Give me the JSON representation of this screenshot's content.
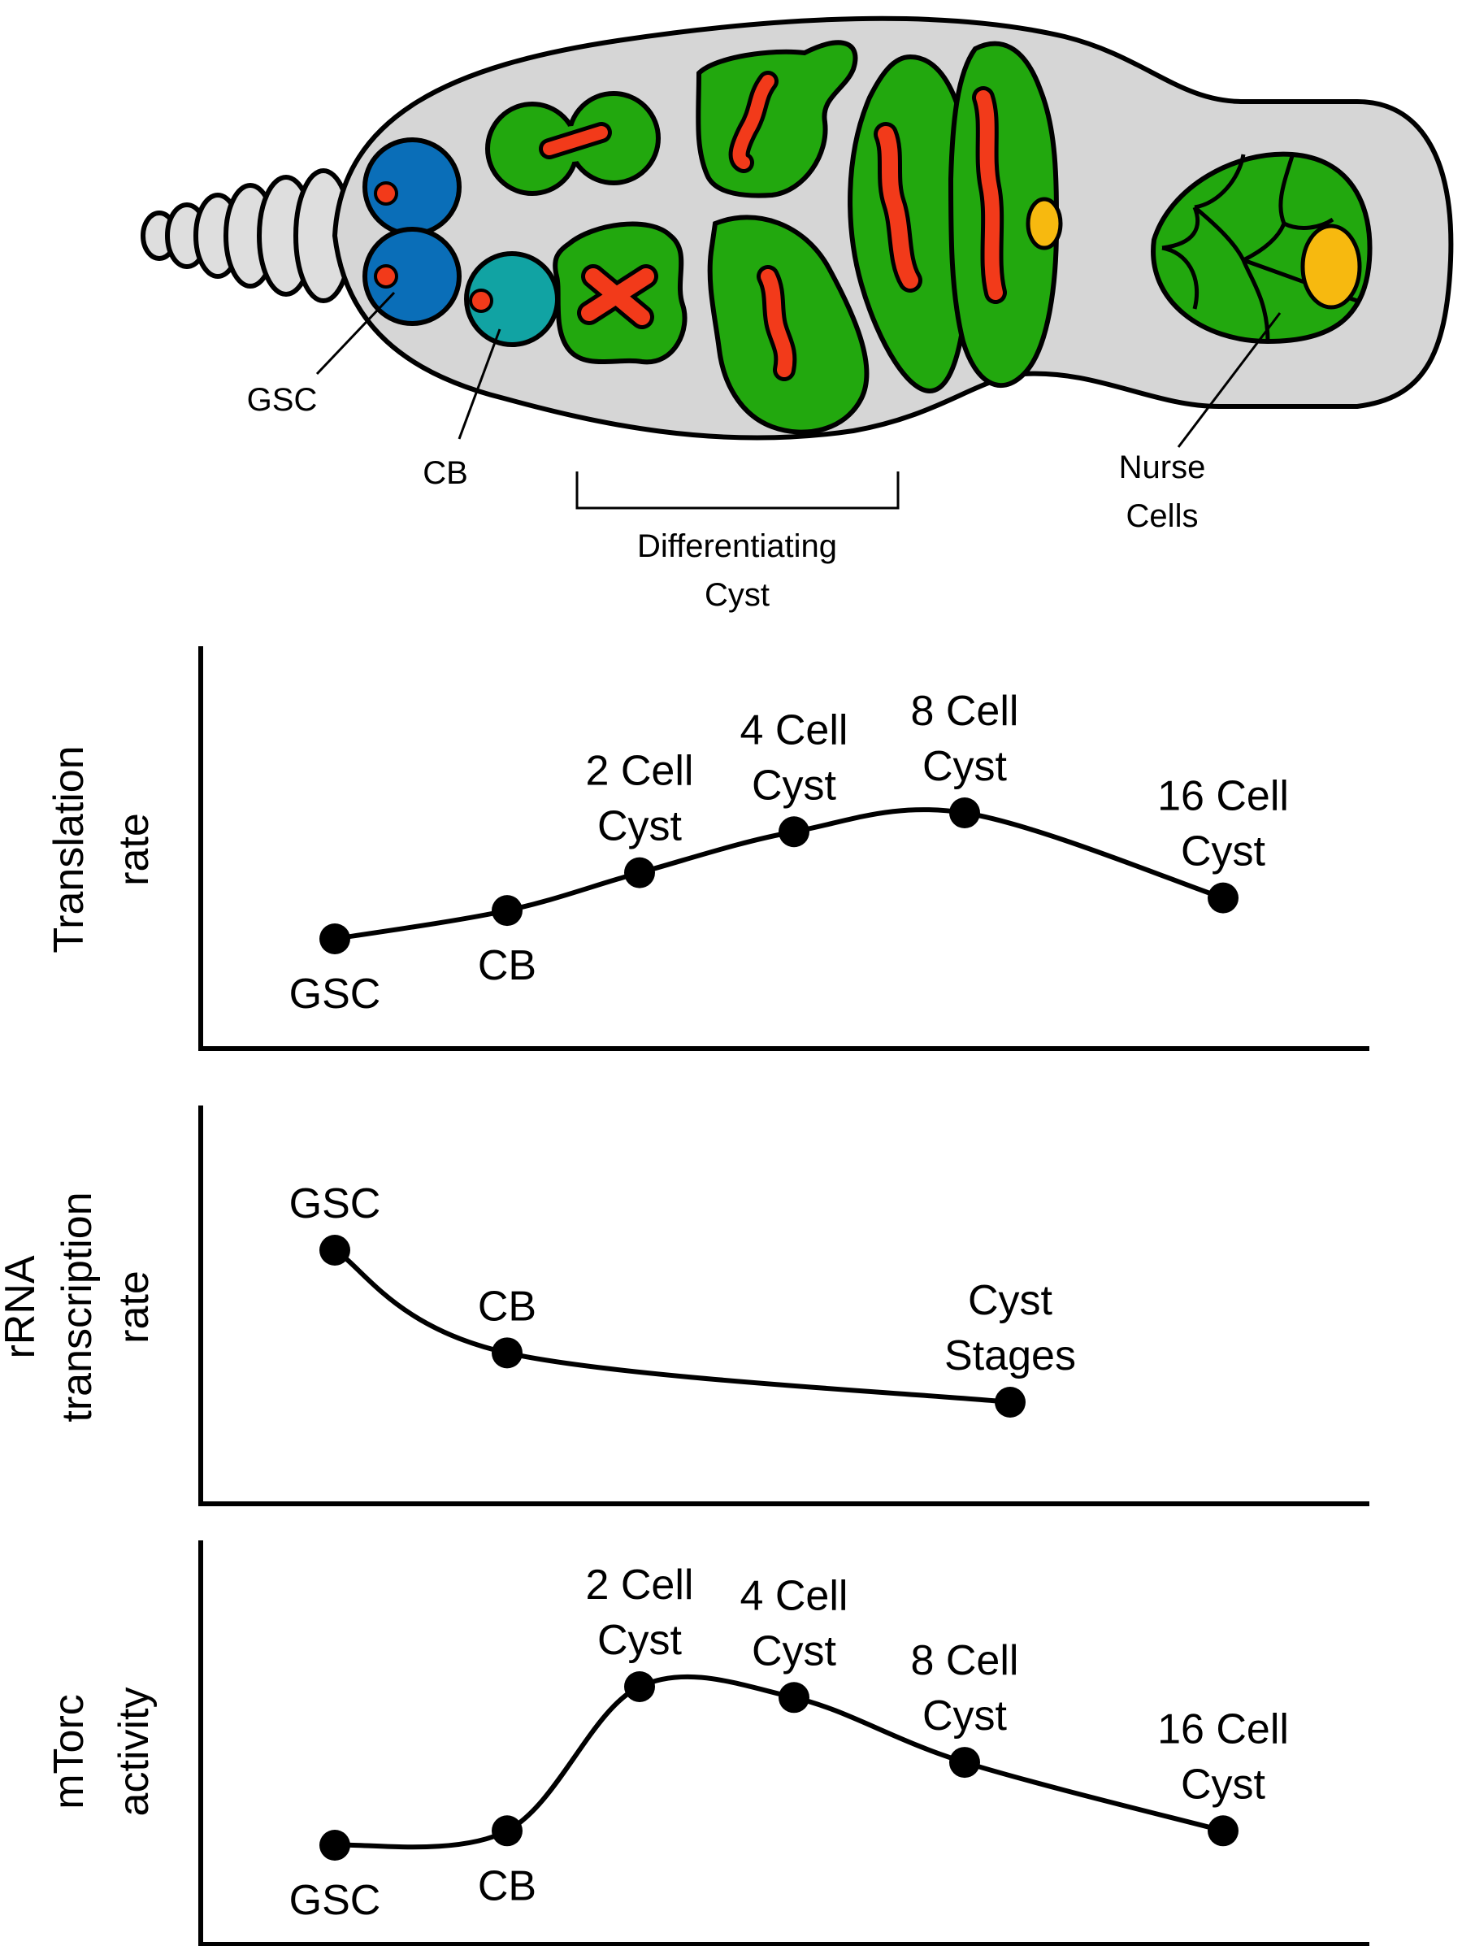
{
  "diagram": {
    "labels": {
      "gsc": "GSC",
      "cb": "CB",
      "differentiating_cyst": [
        "Differentiating",
        "Cyst"
      ],
      "nurse_cells": [
        "Nurse",
        "Cells"
      ]
    },
    "colors": {
      "germarium_fill": "#d6d6d6",
      "terminal_filament": "#dedede",
      "gsc_blue": "#0a6eb8",
      "cb_teal": "#11a3a3",
      "cyst_green": "#22a80e",
      "fusome_red": "#f23a1a",
      "oocyte_yellow": "#f7b90f"
    }
  },
  "chart_data": [
    {
      "type": "line",
      "ylabel": [
        "Translation",
        "rate"
      ],
      "points": [
        {
          "label": [
            "GSC"
          ],
          "value": 1.0
        },
        {
          "label": [
            "CB"
          ],
          "value": 1.9
        },
        {
          "label": [
            "2 Cell",
            "Cyst"
          ],
          "value": 3.1
        },
        {
          "label": [
            "4 Cell",
            "Cyst"
          ],
          "value": 4.4
        },
        {
          "label": [
            "8 Cell",
            "Cyst"
          ],
          "value": 5.0
        },
        {
          "label": [
            "16 Cell",
            "Cyst"
          ],
          "value": 2.3
        }
      ]
    },
    {
      "type": "line",
      "ylabel": [
        "rRNA",
        "transcription",
        "rate"
      ],
      "points": [
        {
          "label": [
            "GSC"
          ],
          "value": 5.0
        },
        {
          "label": [
            "CB"
          ],
          "value": 2.5
        },
        {
          "label": [
            "Cyst",
            "Stages"
          ],
          "value": 1.3
        }
      ]
    },
    {
      "type": "line",
      "ylabel": [
        "mTorc",
        "activity"
      ],
      "points": [
        {
          "label": [
            "GSC"
          ],
          "value": 0.6
        },
        {
          "label": [
            "CB"
          ],
          "value": 1.0
        },
        {
          "label": [
            "2 Cell",
            "Cyst"
          ],
          "value": 5.0
        },
        {
          "label": [
            "4 Cell",
            "Cyst"
          ],
          "value": 4.7
        },
        {
          "label": [
            "8 Cell",
            "Cyst"
          ],
          "value": 2.9
        },
        {
          "label": [
            "16 Cell",
            "Cyst"
          ],
          "value": 1.0
        }
      ]
    }
  ]
}
